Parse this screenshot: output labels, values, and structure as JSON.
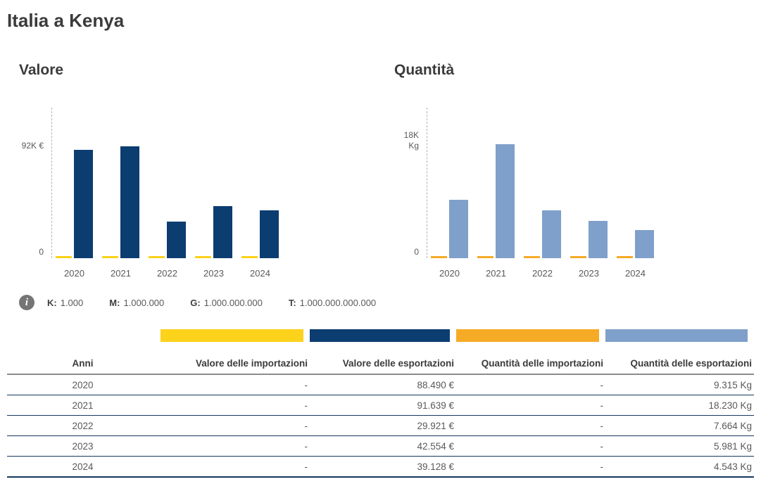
{
  "header": {
    "title": "Italia a Kenya"
  },
  "chart_data": [
    {
      "type": "bar",
      "title": "Valore",
      "unit": "€",
      "categories": [
        "2020",
        "2021",
        "2022",
        "2023",
        "2024"
      ],
      "series": [
        {
          "name": "Valore delle importazioni",
          "color": "#FCD21B",
          "values": [
            0,
            0,
            0,
            0,
            0
          ]
        },
        {
          "name": "Valore delle esportazioni",
          "color": "#0B3D70",
          "values": [
            88490,
            91639,
            29921,
            42554,
            39128
          ]
        }
      ],
      "y_axis": {
        "max_value": 92000,
        "max_label": "92K €",
        "zero_label": "0"
      },
      "grid": false,
      "legend_position": "below-in-table"
    },
    {
      "type": "bar",
      "title": "Quantità",
      "unit": "Kg",
      "categories": [
        "2020",
        "2021",
        "2022",
        "2023",
        "2024"
      ],
      "series": [
        {
          "name": "Quantità delle importazioni",
          "color": "#F6AB26",
          "values": [
            0,
            0,
            0,
            0,
            0
          ]
        },
        {
          "name": "Quantità delle esportazioni",
          "color": "#7FA0CA",
          "values": [
            9315,
            18230,
            7664,
            5981,
            4543
          ]
        }
      ],
      "y_axis": {
        "max_value": 18000,
        "max_label": "18K Kg",
        "zero_label": "0"
      },
      "grid": false,
      "legend_position": "below-in-table"
    }
  ],
  "info_legend": {
    "icon": "info-icon",
    "items": [
      {
        "label": "K:",
        "value": "1.000"
      },
      {
        "label": "M:",
        "value": "1.000.000"
      },
      {
        "label": "G:",
        "value": "1.000.000.000"
      },
      {
        "label": "T:",
        "value": "1.000.000.000.000"
      }
    ]
  },
  "table": {
    "columns": [
      "Anni",
      "Valore delle importazioni",
      "Valore delle esportazioni",
      "Quantità delle importazioni",
      "Quantità delle esportazioni"
    ],
    "legend_colors": [
      "#FCD21B",
      "#0B3D70",
      "#F6AB26",
      "#7FA0CA"
    ],
    "rows": [
      [
        "2020",
        "-",
        "88.490 €",
        "-",
        "9.315 Kg"
      ],
      [
        "2021",
        "-",
        "91.639 €",
        "-",
        "18.230 Kg"
      ],
      [
        "2022",
        "-",
        "29.921 €",
        "-",
        "7.664 Kg"
      ],
      [
        "2023",
        "-",
        "42.554 €",
        "-",
        "5.981 Kg"
      ],
      [
        "2024",
        "-",
        "39.128 €",
        "-",
        "4.543 Kg"
      ]
    ]
  },
  "colors": {
    "title_text": "#3b3b3b",
    "muted_text": "#595959",
    "row_line": "#17375e",
    "header_line": "#8c8c8c",
    "axis_dash": "#b3b3b3"
  }
}
